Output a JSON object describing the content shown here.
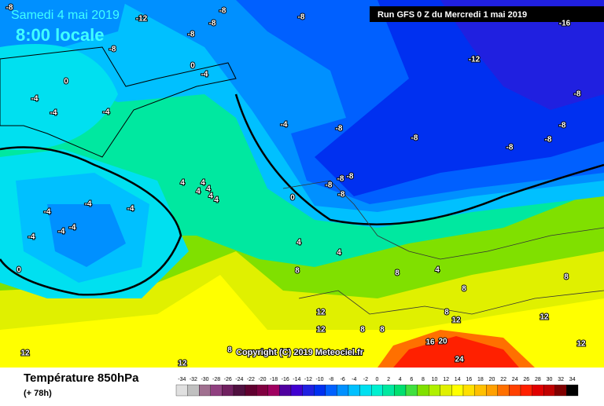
{
  "header": {
    "date": "Samedi 4 mai 2019",
    "time": "8:00 locale",
    "run": "Run GFS 0 Z du Mercredi 1 mai 2019"
  },
  "footer": {
    "title": "Température 850hPa",
    "lead": "(+ 78h)",
    "copyright": "Copyright (C) 2019 Meteociel.fr"
  },
  "legend": {
    "ticks": [
      -34,
      -32,
      -30,
      -28,
      -26,
      -24,
      -22,
      -20,
      -18,
      -16,
      -14,
      -12,
      -10,
      -8,
      -6,
      -4,
      -2,
      0,
      2,
      4,
      6,
      8,
      10,
      12,
      14,
      16,
      18,
      20,
      22,
      24,
      26,
      28,
      30,
      32,
      34
    ],
    "colors": [
      "#e0e0e0",
      "#c0c0c0",
      "#a07090",
      "#904080",
      "#702060",
      "#501040",
      "#600030",
      "#800040",
      "#a00060",
      "#5000a0",
      "#4000d0",
      "#2020e0",
      "#0030f0",
      "#0060ff",
      "#0090ff",
      "#00c0ff",
      "#00e0f0",
      "#00f0d0",
      "#00e8a0",
      "#00e070",
      "#40e040",
      "#80e000",
      "#b0f000",
      "#e0f000",
      "#ffff00",
      "#ffe000",
      "#ffc000",
      "#ffa000",
      "#ff7000",
      "#ff4000",
      "#ff2000",
      "#e00000",
      "#c00000",
      "#800000",
      "#000000"
    ]
  },
  "map_labels": [
    "-8",
    "-12",
    "-8",
    "-8",
    "-8",
    "-8",
    "-8",
    "-12",
    "-16",
    "-8",
    "-8",
    "-8",
    "-8",
    "-8",
    "-8",
    "-4",
    "-4",
    "-4",
    "-4",
    "0",
    "0",
    "-4",
    "-8",
    "-8",
    "-8",
    "-8",
    "0",
    "4",
    "4",
    "4",
    "4",
    "4",
    "4",
    "-4",
    "-4",
    "-4",
    "-4",
    "-4",
    "-4",
    "0",
    "4",
    "4",
    "8",
    "8",
    "4",
    "8",
    "8",
    "8",
    "12",
    "12",
    "12",
    "8",
    "8",
    "12",
    "16",
    "20",
    "24",
    "12",
    "12",
    "12",
    "8"
  ]
}
